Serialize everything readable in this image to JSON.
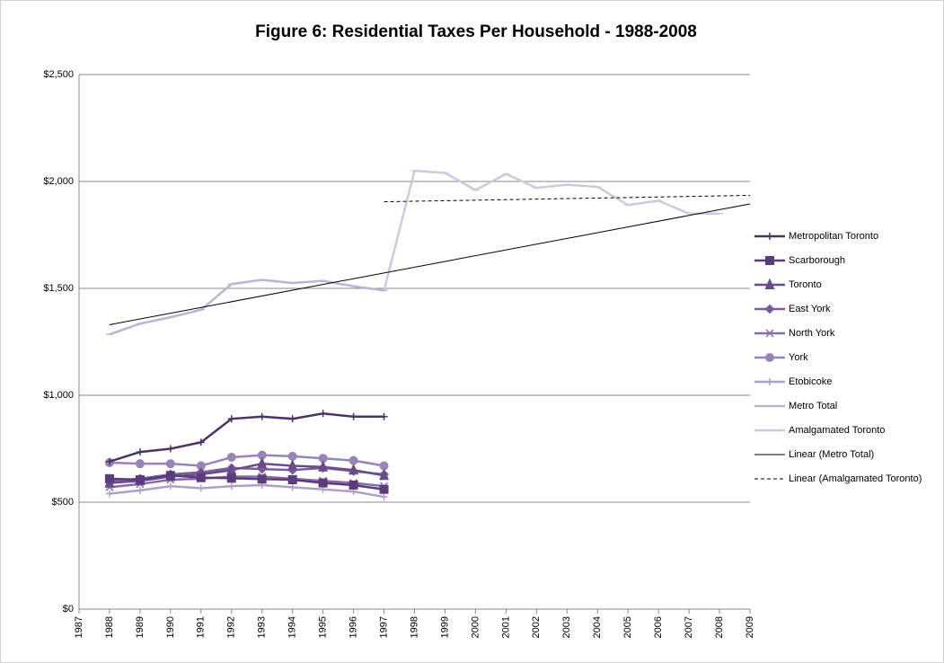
{
  "chart_data": {
    "type": "line",
    "title": "Figure 6: Residential Taxes Per Household - 1988-2008",
    "x": [
      1988,
      1989,
      1990,
      1991,
      1992,
      1993,
      1994,
      1995,
      1996,
      1997,
      1998,
      1999,
      2000,
      2001,
      2002,
      2003,
      2004,
      2005,
      2006,
      2007,
      2008
    ],
    "series": [
      {
        "name": "Metropolitan Toronto",
        "color": "#4b3366",
        "marker": "plus",
        "values": [
          690,
          735,
          750,
          780,
          890,
          900,
          890,
          915,
          900,
          900,
          null,
          null,
          null,
          null,
          null,
          null,
          null,
          null,
          null,
          null,
          null
        ]
      },
      {
        "name": "Scarborough",
        "color": "#5a3d7a",
        "marker": "square",
        "values": [
          610,
          605,
          625,
          615,
          612,
          608,
          605,
          590,
          580,
          560,
          null,
          null,
          null,
          null,
          null,
          null,
          null,
          null,
          null,
          null,
          null
        ]
      },
      {
        "name": "Toronto",
        "color": "#6a4c8c",
        "marker": "triangle",
        "values": [
          590,
          600,
          620,
          630,
          650,
          680,
          670,
          665,
          650,
          625,
          null,
          null,
          null,
          null,
          null,
          null,
          null,
          null,
          null,
          null,
          null
        ]
      },
      {
        "name": "East York",
        "color": "#7a5c9a",
        "marker": "diamond",
        "values": [
          600,
          610,
          630,
          640,
          660,
          655,
          650,
          660,
          645,
          630,
          null,
          null,
          null,
          null,
          null,
          null,
          null,
          null,
          null,
          null,
          null
        ]
      },
      {
        "name": "North York",
        "color": "#8a6ca8",
        "marker": "asterisk",
        "values": [
          570,
          585,
          605,
          610,
          620,
          620,
          610,
          600,
          590,
          575,
          null,
          null,
          null,
          null,
          null,
          null,
          null,
          null,
          null,
          null,
          null
        ]
      },
      {
        "name": "York",
        "color": "#9a84b5",
        "marker": "circle",
        "values": [
          685,
          680,
          680,
          670,
          710,
          720,
          715,
          705,
          695,
          670,
          null,
          null,
          null,
          null,
          null,
          null,
          null,
          null,
          null,
          null,
          null
        ]
      },
      {
        "name": "Etobicoke",
        "color": "#b0a0c8",
        "marker": "plus",
        "values": [
          540,
          555,
          575,
          565,
          575,
          580,
          570,
          560,
          550,
          525,
          null,
          null,
          null,
          null,
          null,
          null,
          null,
          null,
          null,
          null,
          null
        ]
      },
      {
        "name": "Metro Total",
        "color": "#bdb3d3",
        "marker": "dash",
        "values": [
          1285,
          1335,
          1365,
          1400,
          1520,
          1540,
          1525,
          1535,
          1510,
          1490,
          null,
          null,
          null,
          null,
          null,
          null,
          null,
          null,
          null,
          null,
          null
        ]
      },
      {
        "name": "Amalgamated Toronto",
        "color": "#cfc8de",
        "marker": "dash",
        "values": [
          null,
          null,
          null,
          null,
          null,
          null,
          null,
          null,
          null,
          1490,
          2050,
          2040,
          1960,
          2035,
          1970,
          1985,
          1975,
          1890,
          1910,
          1850,
          1850
        ]
      }
    ],
    "trendlines": [
      {
        "name": "Linear (Metro Total)",
        "color": "#000000",
        "dashed": false,
        "x": [
          1988,
          2009
        ],
        "values": [
          1330,
          1895
        ]
      },
      {
        "name": "Linear (Amalgamated Toronto)",
        "color": "#000000",
        "dashed": true,
        "x": [
          1997,
          2009
        ],
        "values": [
          1905,
          1935
        ]
      }
    ],
    "xlim": [
      1987,
      2009
    ],
    "xticks": [
      1987,
      1988,
      1989,
      1990,
      1991,
      1992,
      1993,
      1994,
      1995,
      1996,
      1997,
      1998,
      1999,
      2000,
      2001,
      2002,
      2003,
      2004,
      2005,
      2006,
      2007,
      2008,
      2009
    ],
    "ylim": [
      0,
      2500
    ],
    "yticks": [
      {
        "value": 0,
        "label": "$0"
      },
      {
        "value": 500,
        "label": "$500"
      },
      {
        "value": 1000,
        "label": "$1,000"
      },
      {
        "value": 1500,
        "label": "$1,500"
      },
      {
        "value": 2000,
        "label": "$2,000"
      },
      {
        "value": 2500,
        "label": "$2,500"
      }
    ],
    "grid": true,
    "legend": "right"
  }
}
